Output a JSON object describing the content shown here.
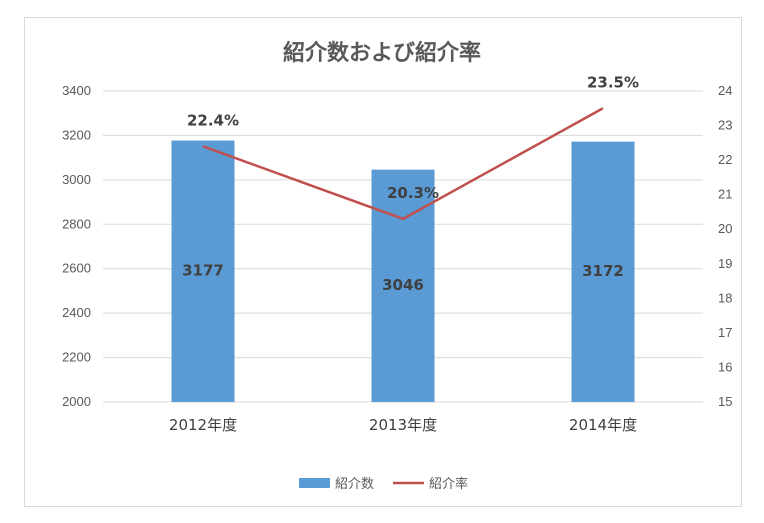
{
  "chart_data": {
    "type": "bar",
    "title": "紹介数および紹介率",
    "categories": [
      "2012年度",
      "2013年度",
      "2014年度"
    ],
    "series": [
      {
        "name": "紹介数",
        "type": "bar",
        "axis": "left",
        "values": [
          3177,
          3046,
          3172
        ],
        "data_labels": [
          "3177",
          "3046",
          "3172"
        ],
        "color": "#5b9bd5"
      },
      {
        "name": "紹介率",
        "type": "line",
        "axis": "right",
        "values": [
          22.4,
          20.3,
          23.5
        ],
        "data_labels": [
          "22.4%",
          "20.3%",
          "23.5%"
        ],
        "color": "#c0504d"
      }
    ],
    "y_left": {
      "min": 2000,
      "max": 3400,
      "ticks": [
        "2000",
        "2200",
        "2400",
        "2600",
        "2800",
        "3000",
        "3200",
        "3400"
      ]
    },
    "y_right": {
      "min": 15,
      "max": 24,
      "ticks": [
        "15",
        "16",
        "17",
        "18",
        "19",
        "20",
        "21",
        "22",
        "23",
        "24"
      ]
    },
    "grid": true,
    "legend_position": "bottom"
  }
}
